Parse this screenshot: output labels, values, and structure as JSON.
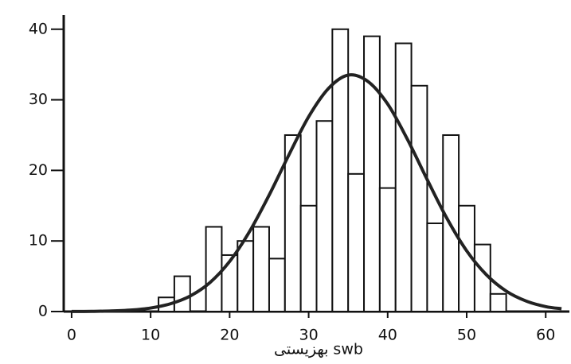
{
  "chart_data": {
    "type": "histogram",
    "x_label": "بهزیستی swb",
    "bins": [
      11,
      13,
      15,
      17,
      19,
      21,
      23,
      25,
      27,
      29,
      31,
      33,
      35,
      37,
      39,
      41,
      43,
      45,
      47,
      49,
      51,
      53,
      55
    ],
    "counts": [
      2,
      5,
      0,
      12,
      8,
      10,
      12,
      7.5,
      25,
      15,
      27,
      40,
      19.5,
      39,
      17.5,
      38,
      32,
      12.5,
      25,
      15,
      9.5,
      2.5
    ],
    "color": "#ffffff",
    "edge_color": "#111111",
    "curve": {
      "type": "line",
      "color": "#222222",
      "x": [
        0,
        2.5,
        5,
        7.5,
        10,
        12.5,
        15,
        17.5,
        20,
        22.5,
        25,
        27.5,
        30,
        32.5,
        35,
        37.5,
        40,
        42.5,
        45,
        47.5,
        50,
        52.5,
        55,
        57.5,
        60,
        62
      ],
      "values": [
        0.01,
        0.03,
        0.08,
        0.21,
        0.5,
        1.1,
        2.2,
        4.1,
        7.1,
        11.3,
        16.5,
        22.2,
        27.6,
        31.6,
        33.5,
        32.6,
        29.4,
        24.4,
        18.7,
        13.2,
        8.6,
        5.2,
        2.9,
        1.5,
        0.7,
        0.4
      ]
    },
    "xlim": [
      -1,
      63
    ],
    "ylim": [
      0,
      42
    ],
    "xticks": [
      0,
      10,
      20,
      30,
      40,
      50,
      60
    ],
    "yticks": [
      0,
      10,
      20,
      30,
      40
    ]
  }
}
